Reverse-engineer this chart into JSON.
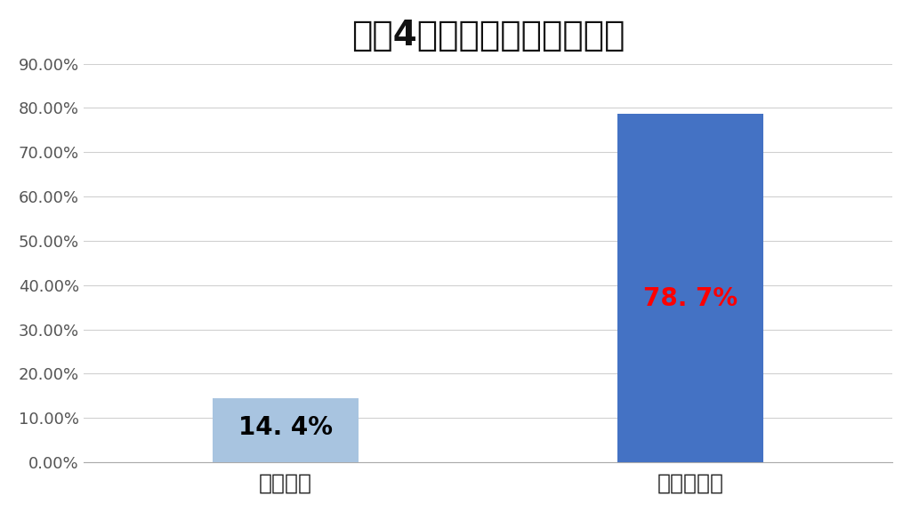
{
  "title": "令和4年度測量士試験合格率",
  "categories": [
    "全国平均",
    "アガルート"
  ],
  "values": [
    0.144,
    0.787
  ],
  "bar_colors": [
    "#a8c4e0",
    "#4472c4"
  ],
  "label_texts": [
    "14. 4%",
    "78. 7%"
  ],
  "label_colors": [
    "#000000",
    "#ff0000"
  ],
  "ylim": [
    0,
    0.9
  ],
  "yticks": [
    0.0,
    0.1,
    0.2,
    0.3,
    0.4,
    0.5,
    0.6,
    0.7,
    0.8,
    0.9
  ],
  "ytick_labels": [
    "0.00%",
    "10.00%",
    "20.00%",
    "30.00%",
    "40.00%",
    "50.00%",
    "60.00%",
    "70.00%",
    "80.00%",
    "90.00%"
  ],
  "background_color": "#ffffff",
  "grid_color": "#d0d0d0",
  "title_fontsize": 28,
  "label_fontsize": 20,
  "tick_fontsize": 13,
  "cat_fontsize": 18,
  "bar_width": 0.18
}
